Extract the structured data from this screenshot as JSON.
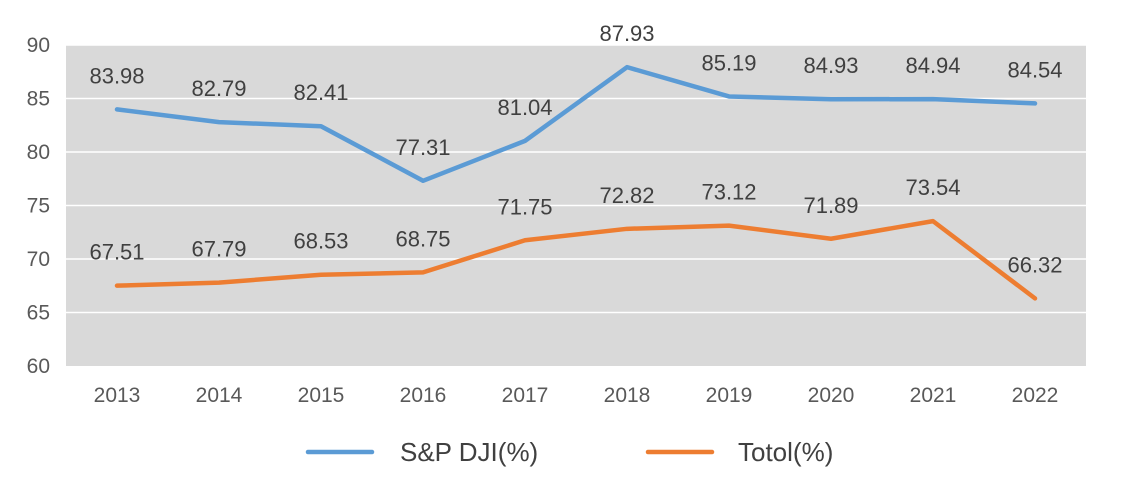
{
  "chart_data": {
    "type": "line",
    "categories": [
      "2013",
      "2014",
      "2015",
      "2016",
      "2017",
      "2018",
      "2019",
      "2020",
      "2021",
      "2022"
    ],
    "series": [
      {
        "name": "S&P DJI(%)",
        "color": "#5b9bd5",
        "values": [
          83.98,
          82.79,
          82.41,
          77.31,
          81.04,
          87.93,
          85.19,
          84.93,
          84.94,
          84.54
        ],
        "labels": [
          "83.98",
          "82.79",
          "82.41",
          "77.31",
          "81.04",
          "87.93",
          "85.19",
          "84.93",
          "84.94",
          "84.54"
        ]
      },
      {
        "name": "Totol(%)",
        "color": "#ed7d31",
        "values": [
          67.51,
          67.79,
          68.53,
          68.75,
          71.75,
          72.82,
          73.12,
          71.89,
          73.54,
          66.32
        ],
        "labels": [
          "67.51",
          "67.79",
          "68.53",
          "68.75",
          "71.75",
          "72.82",
          "73.12",
          "71.89",
          "73.54",
          "66.32"
        ]
      }
    ],
    "ylim": [
      60,
      90
    ],
    "yticks": [
      "60",
      "65",
      "70",
      "75",
      "80",
      "85",
      "90"
    ],
    "grid": true,
    "plot_background": "#d9d9d9",
    "legend_position": "bottom"
  }
}
